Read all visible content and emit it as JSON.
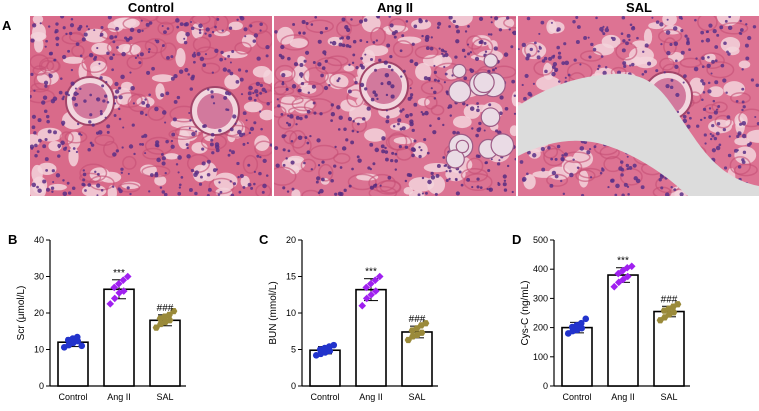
{
  "panels": {
    "a": "A",
    "b": "B",
    "c": "C",
    "d": "D"
  },
  "images": [
    {
      "title": "Control",
      "tissue_color": "#d96a8a",
      "nuclei_color": "#5a2f86"
    },
    {
      "title": "Ang II",
      "tissue_color": "#db7393",
      "nuclei_color": "#562c80"
    },
    {
      "title": "SAL",
      "tissue_color": "#dd7393",
      "nuclei_color": "#5b3188"
    }
  ],
  "chart_data": [
    {
      "type": "bar",
      "categories": [
        "Control",
        "Ang II",
        "SAL"
      ],
      "values": [
        12,
        26.5,
        18
      ],
      "errors": [
        1.2,
        2.6,
        1.5
      ],
      "points": [
        [
          10.6,
          11.2,
          11.8,
          12.3,
          12.6,
          13.0,
          13.4,
          11.0
        ],
        [
          22.5,
          24.0,
          25.5,
          26.0,
          27.0,
          28.0,
          29.0,
          30.0
        ],
        [
          16.0,
          17.0,
          17.5,
          18.0,
          18.5,
          19.0,
          19.5,
          20.5
        ]
      ],
      "point_colors": [
        "#2233cc",
        "#a020f0",
        "#9a8a3a"
      ],
      "annotations": [
        "",
        "***",
        "###"
      ],
      "ylabel": "Scr (μmol/L)",
      "ylim": [
        0,
        40
      ],
      "yticks": [
        0,
        10,
        20,
        30,
        40
      ]
    },
    {
      "type": "bar",
      "categories": [
        "Control",
        "Ang II",
        "SAL"
      ],
      "values": [
        4.9,
        13.2,
        7.4
      ],
      "errors": [
        0.5,
        1.5,
        0.8
      ],
      "points": [
        [
          4.2,
          4.4,
          4.6,
          4.8,
          5.0,
          5.2,
          5.4,
          5.6
        ],
        [
          11.0,
          12.0,
          12.5,
          13.0,
          13.5,
          14.0,
          14.5,
          15.0
        ],
        [
          6.3,
          6.8,
          7.0,
          7.3,
          7.6,
          7.9,
          8.3,
          8.6
        ]
      ],
      "point_colors": [
        "#2233cc",
        "#a020f0",
        "#9a8a3a"
      ],
      "annotations": [
        "",
        "***",
        "###"
      ],
      "ylabel": "BUN (mmol/L)",
      "ylim": [
        0,
        20
      ],
      "yticks": [
        0,
        5,
        10,
        15,
        20
      ]
    },
    {
      "type": "bar",
      "categories": [
        "Control",
        "Ang II",
        "SAL"
      ],
      "values": [
        200,
        380,
        255
      ],
      "errors": [
        18,
        25,
        18
      ],
      "points": [
        [
          180,
          188,
          192,
          198,
          202,
          208,
          215,
          230
        ],
        [
          340,
          355,
          365,
          375,
          385,
          395,
          405,
          410
        ],
        [
          225,
          235,
          245,
          252,
          258,
          265,
          272,
          280
        ]
      ],
      "point_colors": [
        "#2233cc",
        "#a020f0",
        "#9a8a3a"
      ],
      "annotations": [
        "",
        "***",
        "###"
      ],
      "ylabel": "Cys-C (ng/mL)",
      "ylim": [
        0,
        500
      ],
      "yticks": [
        0,
        100,
        200,
        300,
        400,
        500
      ]
    }
  ]
}
